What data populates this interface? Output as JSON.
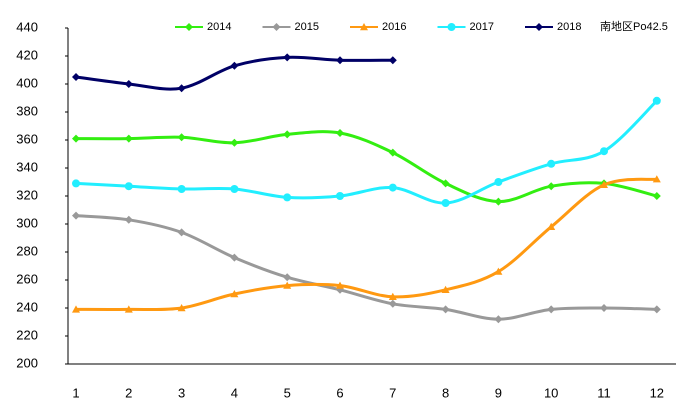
{
  "chart_data": {
    "type": "line",
    "annotation": "南地区Po42.5",
    "categories": [
      "1",
      "2",
      "3",
      "4",
      "5",
      "6",
      "7",
      "8",
      "9",
      "10",
      "11",
      "12"
    ],
    "ylim": [
      200,
      440
    ],
    "yticks": [
      200,
      220,
      240,
      260,
      280,
      300,
      320,
      340,
      360,
      380,
      400,
      420,
      440
    ],
    "grid": false,
    "smooth": true,
    "series": [
      {
        "name": "2014",
        "color": "#33ee11",
        "marker": "diamond",
        "values": [
          361,
          361,
          362,
          358,
          364,
          365,
          351,
          329,
          316,
          327,
          329,
          320
        ]
      },
      {
        "name": "2015",
        "color": "#999999",
        "marker": "diamond",
        "values": [
          306,
          303,
          294,
          276,
          262,
          253,
          243,
          239,
          232,
          239,
          240,
          239
        ]
      },
      {
        "name": "2016",
        "color": "#ff9911",
        "marker": "triangle",
        "values": [
          239,
          239,
          240,
          250,
          256,
          256,
          248,
          253,
          266,
          298,
          328,
          332
        ]
      },
      {
        "name": "2017",
        "color": "#22eeff",
        "marker": "circle",
        "values": [
          329,
          327,
          325,
          325,
          319,
          320,
          326,
          315,
          330,
          343,
          352,
          388
        ]
      },
      {
        "name": "2018",
        "color": "#000066",
        "marker": "diamond",
        "values": [
          405,
          400,
          397,
          413,
          419,
          417,
          417,
          null,
          null,
          null,
          null,
          null
        ]
      }
    ]
  }
}
